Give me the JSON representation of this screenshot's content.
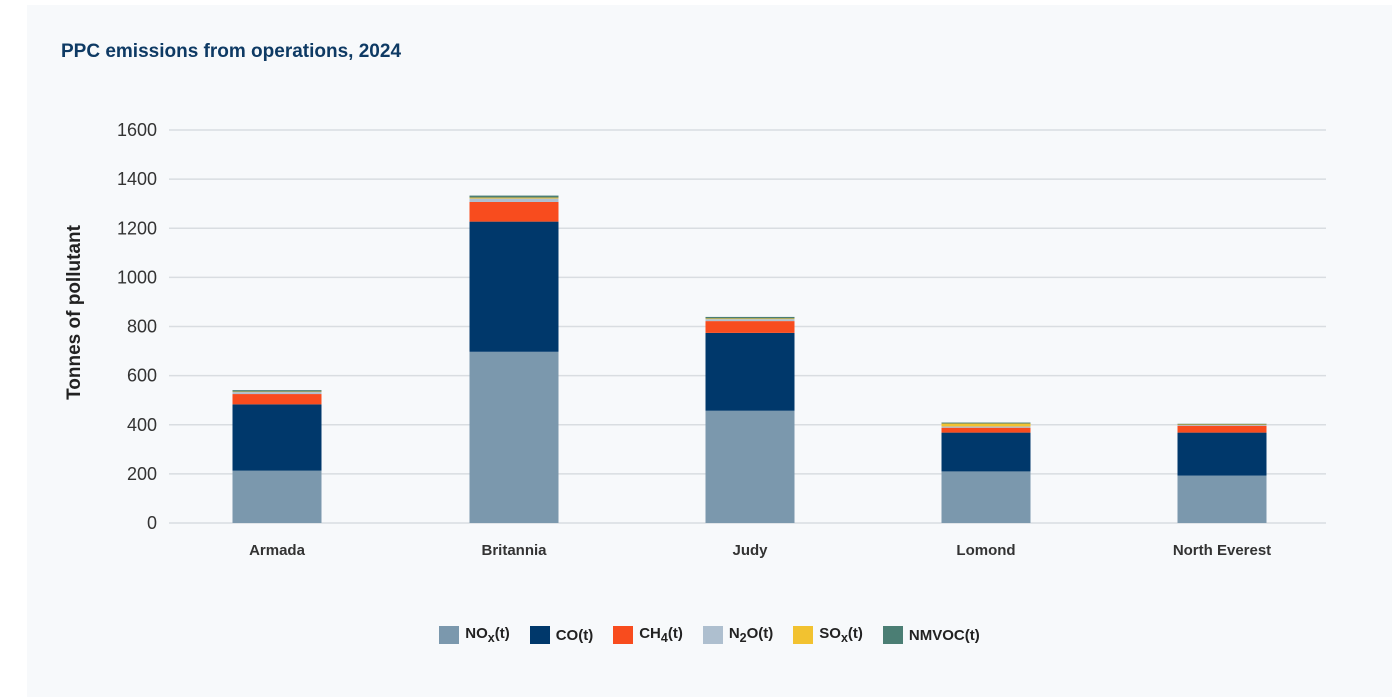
{
  "chart_data": {
    "type": "bar",
    "stacked": true,
    "title": "PPC emissions from operations, 2024",
    "xlabel": "",
    "ylabel": "Tonnes of pollutant",
    "ylim": [
      0,
      1600
    ],
    "yticks": [
      0,
      200,
      400,
      600,
      800,
      1000,
      1200,
      1400,
      1600
    ],
    "grid": true,
    "legend_position": "bottom",
    "categories": [
      "Armada",
      "Britannia",
      "Judy",
      "Lomond",
      "North Everest"
    ],
    "series": [
      {
        "name": "NOx(t)",
        "legend_html": "NO<sub>x</sub>(t)",
        "color": "#7b98ad",
        "values": [
          213,
          697,
          457,
          210,
          193
        ]
      },
      {
        "name": "CO(t)",
        "legend_html": "CO(t)",
        "color": "#00386b",
        "values": [
          270,
          530,
          317,
          158,
          175
        ]
      },
      {
        "name": "CH4(t)",
        "legend_html": "CH<sub>4</sub>(t)",
        "color": "#f84c1e",
        "values": [
          42,
          80,
          48,
          20,
          28
        ]
      },
      {
        "name": "N2O(t)",
        "legend_html": "N<sub>2</sub>O(t)",
        "color": "#aebfcf",
        "values": [
          8,
          14,
          8,
          5,
          3
        ]
      },
      {
        "name": "SOx(t)",
        "legend_html": "SO<sub>x</sub>(t)",
        "color": "#f2c230",
        "values": [
          2,
          4,
          3,
          12,
          2
        ]
      },
      {
        "name": "NMVOC(t)",
        "legend_html": "NMVOC(t)",
        "color": "#4b7e74",
        "values": [
          6,
          8,
          6,
          4,
          3
        ]
      }
    ]
  }
}
